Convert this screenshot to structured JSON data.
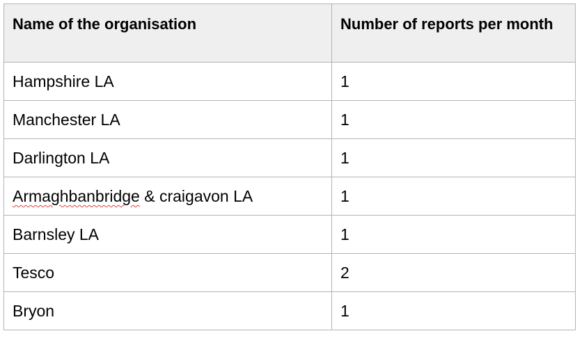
{
  "table": {
    "headers": [
      "Name of the organisation",
      "Number of reports per month"
    ],
    "rows": [
      {
        "name": "Hampshire LA",
        "count": "1"
      },
      {
        "name_misspelled": "Armaghbanbridge",
        "name": "Manchester LA",
        "count": "1"
      },
      {
        "name": "Darlington LA",
        "count": "1"
      },
      {
        "name": " & craigavon LA",
        "count": "1"
      },
      {
        "name": "Barnsley LA",
        "count": "1"
      },
      {
        "name": "Tesco",
        "count": "2"
      },
      {
        "name": "Bryon",
        "count": "1"
      }
    ]
  },
  "style": {
    "header_bg": "#efefef",
    "border": "#b3b3b3",
    "spellcheck_underline": "#e0413c"
  }
}
